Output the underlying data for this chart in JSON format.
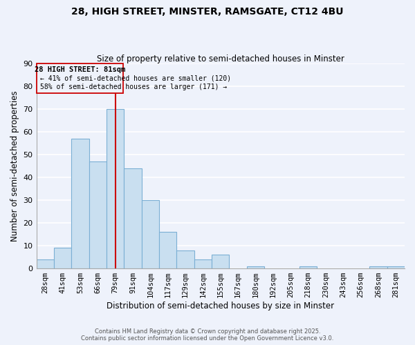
{
  "title_line1": "28, HIGH STREET, MINSTER, RAMSGATE, CT12 4BU",
  "title_line2": "Size of property relative to semi-detached houses in Minster",
  "xlabel": "Distribution of semi-detached houses by size in Minster",
  "ylabel": "Number of semi-detached properties",
  "categories": [
    "28sqm",
    "41sqm",
    "53sqm",
    "66sqm",
    "79sqm",
    "91sqm",
    "104sqm",
    "117sqm",
    "129sqm",
    "142sqm",
    "155sqm",
    "167sqm",
    "180sqm",
    "192sqm",
    "205sqm",
    "218sqm",
    "230sqm",
    "243sqm",
    "256sqm",
    "268sqm",
    "281sqm"
  ],
  "values": [
    4,
    9,
    57,
    47,
    70,
    44,
    30,
    16,
    8,
    4,
    6,
    0,
    1,
    0,
    0,
    1,
    0,
    0,
    0,
    1,
    1
  ],
  "bar_color": "#c9dff0",
  "bar_edge_color": "#7bafd4",
  "highlight_bar_index": 4,
  "highlight_line_color": "#cc0000",
  "property_label": "28 HIGH STREET: 81sqm",
  "annotation_smaller": "← 41% of semi-detached houses are smaller (120)",
  "annotation_larger": "58% of semi-detached houses are larger (171) →",
  "ylim": [
    0,
    90
  ],
  "yticks": [
    0,
    10,
    20,
    30,
    40,
    50,
    60,
    70,
    80,
    90
  ],
  "background_color": "#eef2fb",
  "grid_color": "#ffffff",
  "footer_line1": "Contains HM Land Registry data © Crown copyright and database right 2025.",
  "footer_line2": "Contains public sector information licensed under the Open Government Licence v3.0."
}
